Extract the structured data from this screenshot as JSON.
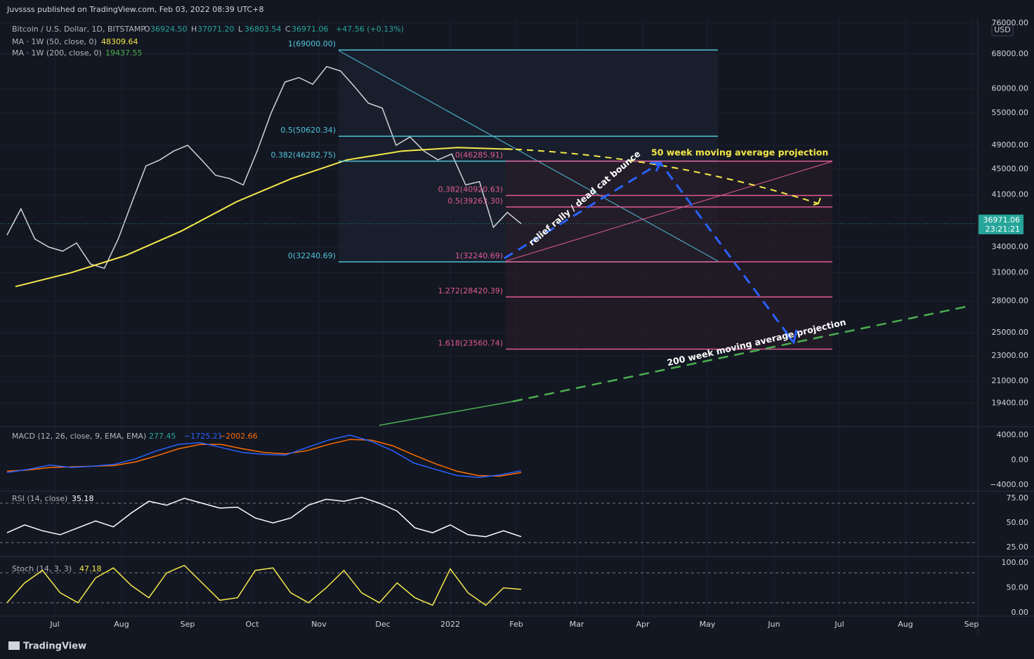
{
  "header": {
    "publisher": "Juvssss published on TradingView.com, Feb 03, 2022 08:39 UTC+8"
  },
  "legend": {
    "symbol": "Bitcoin / U.S. Dollar, 1D, BITSTAMP",
    "ohlc": [
      {
        "k": "O",
        "v": "36924.50"
      },
      {
        "k": "H",
        "v": "37071.20"
      },
      {
        "k": "L",
        "v": "36803.54"
      },
      {
        "k": "C",
        "v": "36971.06"
      }
    ],
    "change": "+47.56 (+0.13%)",
    "ma50": {
      "name": "MA · 1W (50, close, 0)",
      "value": "48309.64",
      "color": "#f5e94a"
    },
    "ma200": {
      "name": "MA · 1W (200, close, 0)",
      "value": "19437.55",
      "color": "#4caf50"
    }
  },
  "price_axis": {
    "currency": "USD",
    "log": true,
    "ylim": [
      17880,
      77330
    ],
    "ticks": [
      {
        "value": 76000,
        "label": "76000.00"
      },
      {
        "value": 68000,
        "label": "68000.00"
      },
      {
        "value": 60000,
        "label": "60000.00"
      },
      {
        "value": 55000,
        "label": "55000.00"
      },
      {
        "value": 49000,
        "label": "49000.00"
      },
      {
        "value": 45000,
        "label": "45000.00"
      },
      {
        "value": 41000,
        "label": "41000.00"
      },
      {
        "value": 34000,
        "label": "34000.00"
      },
      {
        "value": 31000,
        "label": "31000.00"
      },
      {
        "value": 28000,
        "label": "28000.00"
      },
      {
        "value": 25000,
        "label": "25000.00"
      },
      {
        "value": 23000,
        "label": "23000.00"
      },
      {
        "value": 21000,
        "label": "21000.00"
      },
      {
        "value": 19400,
        "label": "19400.00"
      }
    ],
    "last_price": 36971.06,
    "countdown": "23:21:21"
  },
  "price": {
    "close": [
      35500,
      39000,
      35000,
      34000,
      33500,
      34500,
      32000,
      31500,
      35000,
      40000,
      45500,
      46500,
      48000,
      49000,
      46500,
      44000,
      43500,
      42500,
      48000,
      55000,
      61500,
      62500,
      61000,
      65000,
      64000,
      60500,
      57000,
      56000,
      49000,
      50500,
      48000,
      46500,
      47500,
      42500,
      43000,
      36500,
      38500,
      36971
    ],
    "close_color": "#d0d3da",
    "ma50": [
      29500,
      31000,
      33000,
      36000,
      40000,
      43500,
      46500,
      48000,
      48600,
      48309.64
    ]
  },
  "fib_left": [
    {
      "label": "1(69000.00)",
      "price": 69000
    },
    {
      "label": "0.5(50620.34)",
      "price": 50620.34
    },
    {
      "label": "0.382(46282.75)",
      "price": 46282.75
    },
    {
      "label": "0(32240.69)",
      "price": 32240.69
    }
  ],
  "fib_right": [
    {
      "label": "0(46285.91)",
      "price": 46285.91
    },
    {
      "label": "0.382(40920.63)",
      "price": 40920.63
    },
    {
      "label": "0.5(39263.30)",
      "price": 39263.3
    },
    {
      "label": "1(32240.69)",
      "price": 32240.69
    },
    {
      "label": "1.272(28420.39)",
      "price": 28420.39
    },
    {
      "label": "1.618(23560.74)",
      "price": 23560.74
    }
  ],
  "annotations": [
    "50 week moving average projection",
    "relief rally / dead cat bounce",
    "200 week moving average projection"
  ],
  "macd": {
    "title": "MACD (12, 26, close, 9, EMA, EMA)",
    "values": [
      {
        "v": "277.45",
        "color": "#26a69a"
      },
      {
        "v": "−1725.21",
        "color": "#2962ff"
      },
      {
        "v": "−2002.66",
        "color": "#ff6d00"
      }
    ],
    "ylim": [
      -4800,
      5130
    ],
    "ticks": [
      {
        "value": 4000,
        "label": "4000.00"
      },
      {
        "value": 0,
        "label": "0.00"
      },
      {
        "value": -4000,
        "label": "−4000.00"
      }
    ],
    "macd": [
      -2000,
      -1500,
      -800,
      -1200,
      -1000,
      -700,
      200,
      1500,
      2500,
      2800,
      2000,
      1200,
      900,
      800,
      2000,
      3200,
      4000,
      3000,
      1500,
      -500,
      -1500,
      -2500,
      -2800,
      -2400,
      -1725
    ],
    "signal": [
      -1800,
      -1600,
      -1200,
      -1100,
      -1000,
      -900,
      -300,
      700,
      1800,
      2500,
      2500,
      1800,
      1200,
      1000,
      1500,
      2500,
      3300,
      3200,
      2300,
      800,
      -600,
      -1800,
      -2500,
      -2600,
      -2003
    ]
  },
  "rsi": {
    "title": "RSI (14, close)",
    "value": "35.18",
    "ylim": [
      18,
      80.7
    ],
    "bands": [
      70,
      30
    ],
    "ticks": [
      {
        "value": 75,
        "label": "75.00"
      },
      {
        "value": 50,
        "label": "50.00"
      },
      {
        "value": 25,
        "label": "25.00"
      }
    ],
    "values": [
      40,
      48,
      42,
      38,
      45,
      52,
      46,
      60,
      72,
      68,
      75,
      70,
      65,
      66,
      55,
      50,
      55,
      68,
      74,
      72,
      76,
      70,
      62,
      45,
      40,
      48,
      38,
      36,
      42,
      36
    ]
  },
  "stoch": {
    "title": "Stoch (14, 3, 3)",
    "value": "47.18",
    "ylim": [
      -5.6,
      110
    ],
    "bands": [
      80,
      20
    ],
    "ticks": [
      {
        "value": 100,
        "label": "100.00"
      },
      {
        "value": 50,
        "label": "50.00"
      },
      {
        "value": 0,
        "label": "0.00"
      }
    ],
    "values": [
      20,
      60,
      85,
      40,
      20,
      70,
      90,
      55,
      30,
      80,
      95,
      60,
      25,
      30,
      85,
      90,
      40,
      20,
      50,
      85,
      40,
      20,
      60,
      30,
      15,
      88,
      40,
      15,
      50,
      47
    ]
  },
  "time_axis": {
    "labels": [
      "Jul",
      "Aug",
      "Sep",
      "Oct",
      "Nov",
      "Dec",
      "2022",
      "Feb",
      "Mar",
      "Apr",
      "May",
      "Jun",
      "Jul",
      "Aug",
      "Sep"
    ]
  },
  "footer": {
    "brand": "TradingView"
  }
}
